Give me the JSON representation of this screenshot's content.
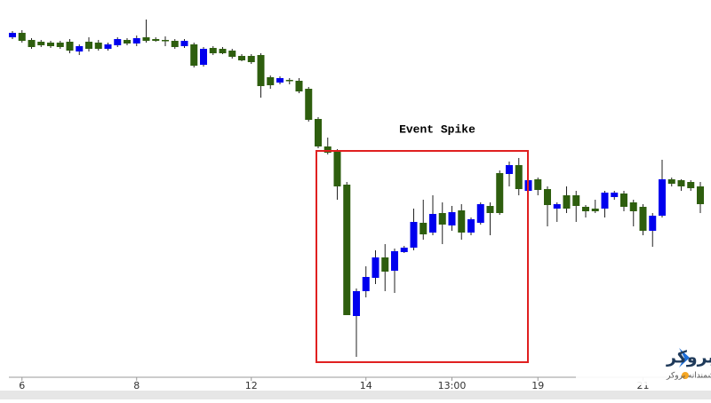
{
  "chart_data": {
    "type": "candlestick",
    "categories": [
      null,
      "6",
      null,
      null,
      null,
      null,
      null,
      null,
      null,
      null,
      null,
      null,
      null,
      "8",
      null,
      null,
      null,
      null,
      null,
      null,
      null,
      null,
      null,
      null,
      null,
      "12",
      null,
      null,
      null,
      null,
      null,
      null,
      null,
      null,
      null,
      null,
      null,
      "14",
      null,
      null,
      null,
      null,
      null,
      null,
      null,
      null,
      "13:00",
      null,
      null,
      null,
      null,
      null,
      null,
      null,
      null,
      "19",
      null,
      null,
      null,
      null,
      null,
      null,
      null,
      null,
      null,
      null,
      "21",
      null,
      null,
      null,
      null,
      null,
      null
    ],
    "open": [
      408,
      413,
      405,
      403,
      402,
      402,
      403,
      392,
      403,
      402,
      395,
      399,
      405,
      401,
      408,
      406,
      405,
      404,
      398,
      400,
      377,
      396,
      395,
      393,
      387,
      387,
      388,
      363,
      357,
      360,
      359,
      350,
      316,
      285,
      280,
      242,
      94,
      122,
      137,
      160,
      145,
      166,
      171,
      199,
      188,
      210,
      196,
      213,
      188,
      199,
      218,
      255,
      254,
      264,
      235,
      248,
      237,
      215,
      230,
      230,
      217,
      215,
      215,
      228,
      232,
      222,
      217,
      190,
      207,
      248,
      247,
      245,
      240
    ],
    "high": [
      415,
      416,
      407,
      405,
      404,
      404,
      406,
      400,
      408,
      405,
      402,
      408,
      407,
      410,
      428,
      408,
      409,
      406,
      406,
      402,
      397,
      398,
      397,
      395,
      389,
      389,
      390,
      365,
      364,
      362,
      362,
      352,
      318,
      295,
      282,
      245,
      125,
      150,
      168,
      175,
      170,
      173,
      215,
      225,
      230,
      222,
      218,
      220,
      205,
      222,
      222,
      258,
      268,
      272,
      250,
      250,
      240,
      222,
      240,
      235,
      219,
      225,
      235,
      235,
      235,
      225,
      220,
      210,
      270,
      250,
      248,
      247,
      245
    ],
    "low": [
      406,
      402,
      395,
      397,
      396,
      395,
      390,
      388,
      392,
      393,
      393,
      397,
      399,
      398,
      402,
      403,
      398,
      395,
      396,
      374,
      375,
      388,
      389,
      384,
      381,
      378,
      340,
      350,
      355,
      355,
      345,
      313,
      283,
      276,
      225,
      95,
      48,
      115,
      130,
      122,
      120,
      165,
      168,
      180,
      185,
      175,
      190,
      180,
      185,
      197,
      185,
      208,
      240,
      230,
      232,
      230,
      195,
      200,
      210,
      200,
      205,
      210,
      205,
      225,
      212,
      195,
      185,
      172,
      205,
      240,
      235,
      235,
      210
    ],
    "close": [
      413,
      404,
      397,
      399,
      398,
      397,
      393,
      398,
      395,
      395,
      400,
      406,
      401,
      407,
      404,
      404,
      404,
      397,
      404,
      376,
      395,
      390,
      390,
      386,
      382,
      380,
      353,
      354,
      362,
      359,
      347,
      315,
      285,
      278,
      240,
      95,
      122,
      138,
      160,
      144,
      167,
      171,
      200,
      186,
      209,
      197,
      211,
      188,
      203,
      220,
      210,
      210,
      264,
      237,
      247,
      236,
      219,
      220,
      215,
      218,
      212,
      212,
      233,
      233,
      217,
      212,
      190,
      207,
      248,
      243,
      240,
      238,
      220
    ],
    "up_color": "#0000ee",
    "down_color": "#2e5e0e",
    "ylim": [
      20,
      450
    ],
    "annotation": "Event Spike"
  },
  "watermark": {
    "title": "کدام بروکر",
    "subtitle": "انتخاب هوشمندانه بروکر"
  }
}
